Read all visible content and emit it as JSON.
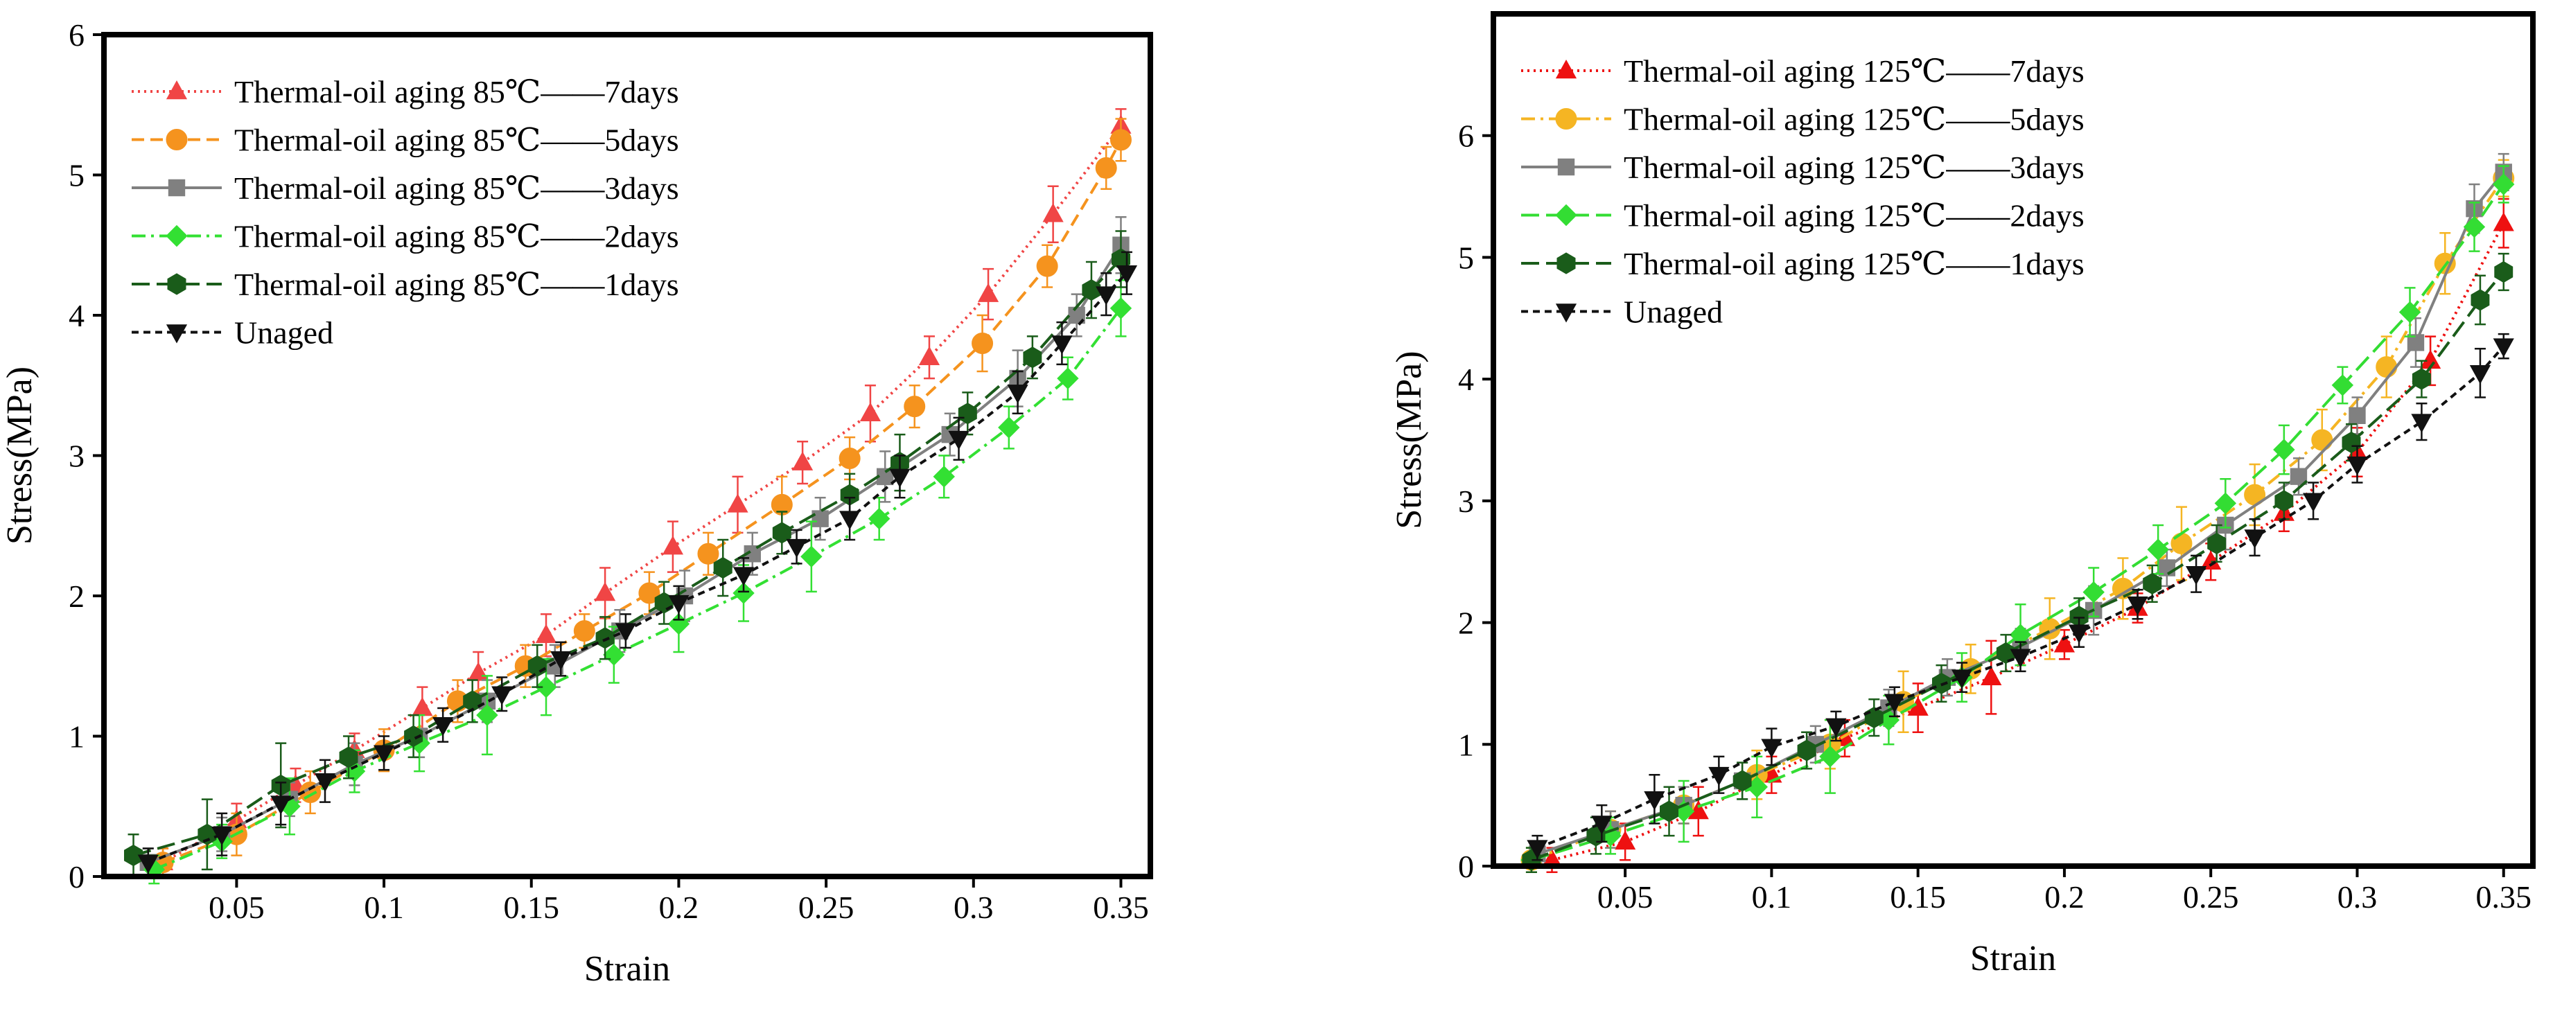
{
  "chart_data": [
    {
      "type": "line",
      "xlabel": "Strain",
      "ylabel": "Stress(MPa)",
      "xlim": [
        0.005,
        0.36
      ],
      "ylim": [
        0,
        6
      ],
      "xticks": [
        "0.05",
        "0.1",
        "0.15",
        "0.2",
        "0.25",
        "0.3",
        "0.35"
      ],
      "xtick_values": [
        0.05,
        0.1,
        0.15,
        0.2,
        0.25,
        0.3,
        0.35
      ],
      "yticks": [
        "0",
        "1",
        "2",
        "3",
        "4",
        "5",
        "6"
      ],
      "ytick_values": [
        0,
        1,
        2,
        3,
        4,
        5,
        6
      ],
      "legend_position": "top-left",
      "error_bars": true,
      "series": [
        {
          "name": "Thermal-oil aging 85℃——7days",
          "color": "#f04545",
          "dash": "dotted",
          "marker": "triangle-up",
          "x": [
            0.025,
            0.05,
            0.07,
            0.09,
            0.113,
            0.132,
            0.155,
            0.175,
            0.198,
            0.22,
            0.242,
            0.265,
            0.285,
            0.305,
            0.327,
            0.35
          ],
          "y": [
            0.1,
            0.4,
            0.65,
            0.9,
            1.2,
            1.45,
            1.72,
            2.02,
            2.35,
            2.65,
            2.95,
            3.3,
            3.7,
            4.15,
            4.72,
            5.35
          ],
          "err": [
            0.1,
            0.12,
            0.12,
            0.12,
            0.15,
            0.15,
            0.15,
            0.18,
            0.18,
            0.2,
            0.15,
            0.2,
            0.15,
            0.18,
            0.2,
            0.12
          ]
        },
        {
          "name": "Thermal-oil aging 85℃——5days",
          "color": "#f5931e",
          "dash": "dashed",
          "marker": "circle",
          "x": [
            0.025,
            0.05,
            0.075,
            0.1,
            0.125,
            0.148,
            0.168,
            0.19,
            0.21,
            0.235,
            0.258,
            0.28,
            0.303,
            0.325,
            0.345,
            0.35
          ],
          "y": [
            0.1,
            0.3,
            0.6,
            0.9,
            1.25,
            1.5,
            1.75,
            2.02,
            2.3,
            2.65,
            2.98,
            3.35,
            3.8,
            4.35,
            5.05,
            5.25
          ],
          "err": [
            0.1,
            0.15,
            0.15,
            0.15,
            0.15,
            0.15,
            0.12,
            0.15,
            0.15,
            0.2,
            0.15,
            0.15,
            0.2,
            0.15,
            0.15,
            0.15
          ]
        },
        {
          "name": "Thermal-oil aging 85℃——3days",
          "color": "#808080",
          "dash": "solid",
          "marker": "square",
          "x": [
            0.02,
            0.045,
            0.068,
            0.09,
            0.112,
            0.135,
            0.158,
            0.18,
            0.202,
            0.225,
            0.248,
            0.27,
            0.292,
            0.315,
            0.335,
            0.35
          ],
          "y": [
            0.1,
            0.3,
            0.55,
            0.8,
            1.0,
            1.25,
            1.5,
            1.75,
            2.0,
            2.3,
            2.55,
            2.85,
            3.15,
            3.55,
            4.0,
            4.5
          ],
          "err": [
            0.1,
            0.12,
            0.12,
            0.15,
            0.15,
            0.15,
            0.15,
            0.15,
            0.18,
            0.15,
            0.15,
            0.18,
            0.15,
            0.2,
            0.15,
            0.2
          ]
        },
        {
          "name": "Thermal-oil aging 85℃——2days",
          "color": "#33e033",
          "dash": "dashdot",
          "marker": "diamond",
          "x": [
            0.022,
            0.045,
            0.068,
            0.09,
            0.112,
            0.135,
            0.155,
            0.178,
            0.2,
            0.222,
            0.245,
            0.268,
            0.29,
            0.312,
            0.332,
            0.35
          ],
          "y": [
            0.05,
            0.25,
            0.5,
            0.75,
            0.95,
            1.15,
            1.35,
            1.58,
            1.8,
            2.02,
            2.28,
            2.55,
            2.85,
            3.2,
            3.55,
            4.05
          ],
          "err": [
            0.1,
            0.12,
            0.2,
            0.15,
            0.2,
            0.28,
            0.2,
            0.2,
            0.2,
            0.2,
            0.25,
            0.15,
            0.15,
            0.15,
            0.15,
            0.2
          ]
        },
        {
          "name": "Thermal-oil aging 85℃——1days",
          "color": "#1a5c1a",
          "dash": "longdash",
          "marker": "hexagon",
          "x": [
            0.015,
            0.04,
            0.065,
            0.088,
            0.11,
            0.13,
            0.152,
            0.175,
            0.195,
            0.215,
            0.235,
            0.258,
            0.275,
            0.298,
            0.32,
            0.34,
            0.35
          ],
          "y": [
            0.15,
            0.3,
            0.65,
            0.85,
            1.0,
            1.25,
            1.5,
            1.7,
            1.95,
            2.2,
            2.45,
            2.72,
            2.95,
            3.3,
            3.7,
            4.18,
            4.4
          ],
          "err": [
            0.15,
            0.25,
            0.3,
            0.15,
            0.15,
            0.15,
            0.15,
            0.15,
            0.15,
            0.2,
            0.15,
            0.15,
            0.2,
            0.15,
            0.15,
            0.2,
            0.2
          ]
        },
        {
          "name": "Unaged",
          "color": "#111111",
          "dash": "shortdash",
          "marker": "triangle-down",
          "x": [
            0.02,
            0.045,
            0.065,
            0.08,
            0.1,
            0.12,
            0.14,
            0.16,
            0.182,
            0.2,
            0.222,
            0.24,
            0.258,
            0.275,
            0.295,
            0.315,
            0.33,
            0.345,
            0.352
          ],
          "y": [
            0.1,
            0.3,
            0.52,
            0.68,
            0.88,
            1.08,
            1.3,
            1.55,
            1.75,
            1.95,
            2.15,
            2.35,
            2.55,
            2.85,
            3.12,
            3.45,
            3.8,
            4.15,
            4.3
          ],
          "err": [
            0.1,
            0.15,
            0.15,
            0.15,
            0.12,
            0.12,
            0.12,
            0.12,
            0.12,
            0.12,
            0.12,
            0.12,
            0.15,
            0.15,
            0.15,
            0.15,
            0.15,
            0.15,
            0.15
          ]
        }
      ]
    },
    {
      "type": "line",
      "xlabel": "Strain",
      "ylabel": "Stress(MPa)",
      "xlim": [
        0.005,
        0.36
      ],
      "ylim": [
        0,
        7
      ],
      "xticks": [
        "0.05",
        "0.1",
        "0.15",
        "0.2",
        "0.25",
        "0.3",
        "0.35"
      ],
      "xtick_values": [
        0.05,
        0.1,
        0.15,
        0.2,
        0.25,
        0.3,
        0.35
      ],
      "yticks": [
        "0",
        "1",
        "2",
        "3",
        "4",
        "5",
        "6"
      ],
      "ytick_values": [
        0,
        1,
        2,
        3,
        4,
        5,
        6
      ],
      "legend_position": "top-left",
      "error_bars": true,
      "series": [
        {
          "name": "Thermal-oil aging 125℃——7days",
          "color": "#ee1111",
          "dash": "dotted",
          "marker": "triangle-up",
          "x": [
            0.025,
            0.05,
            0.075,
            0.1,
            0.125,
            0.15,
            0.175,
            0.2,
            0.225,
            0.25,
            0.275,
            0.3,
            0.325,
            0.35
          ],
          "y": [
            0.05,
            0.2,
            0.45,
            0.75,
            1.05,
            1.3,
            1.55,
            1.82,
            2.12,
            2.5,
            2.9,
            3.4,
            4.15,
            5.28
          ],
          "err": [
            0.1,
            0.15,
            0.2,
            0.15,
            0.15,
            0.2,
            0.3,
            0.12,
            0.12,
            0.15,
            0.15,
            0.2,
            0.2,
            0.2
          ]
        },
        {
          "name": "Thermal-oil aging 125℃——5days",
          "color": "#f5b523",
          "dash": "dashdot",
          "marker": "circle",
          "x": [
            0.018,
            0.045,
            0.07,
            0.095,
            0.12,
            0.145,
            0.168,
            0.195,
            0.22,
            0.24,
            0.265,
            0.288,
            0.31,
            0.33,
            0.35
          ],
          "y": [
            0.05,
            0.3,
            0.5,
            0.75,
            1.0,
            1.35,
            1.62,
            1.95,
            2.28,
            2.65,
            3.05,
            3.5,
            4.1,
            4.95,
            5.65
          ],
          "err": [
            0.1,
            0.15,
            0.15,
            0.2,
            0.2,
            0.25,
            0.2,
            0.25,
            0.25,
            0.3,
            0.25,
            0.25,
            0.25,
            0.25,
            0.15
          ]
        },
        {
          "name": "Thermal-oil aging 125℃——3days",
          "color": "#808080",
          "dash": "solid",
          "marker": "square",
          "x": [
            0.02,
            0.045,
            0.07,
            0.09,
            0.115,
            0.14,
            0.16,
            0.185,
            0.21,
            0.235,
            0.255,
            0.28,
            0.3,
            0.32,
            0.34,
            0.35
          ],
          "y": [
            0.1,
            0.3,
            0.5,
            0.7,
            1.0,
            1.3,
            1.55,
            1.8,
            2.1,
            2.45,
            2.8,
            3.2,
            3.7,
            4.3,
            5.4,
            5.7
          ],
          "err": [
            0.1,
            0.15,
            0.15,
            0.15,
            0.15,
            0.15,
            0.15,
            0.15,
            0.2,
            0.15,
            0.2,
            0.15,
            0.15,
            0.2,
            0.2,
            0.15
          ]
        },
        {
          "name": "Thermal-oil aging 125℃——2days",
          "color": "#33dd33",
          "dash": "longdash",
          "marker": "diamond",
          "x": [
            0.018,
            0.045,
            0.07,
            0.095,
            0.12,
            0.14,
            0.165,
            0.185,
            0.21,
            0.232,
            0.255,
            0.275,
            0.295,
            0.318,
            0.34,
            0.35
          ],
          "y": [
            0.05,
            0.25,
            0.45,
            0.65,
            0.9,
            1.2,
            1.55,
            1.9,
            2.25,
            2.6,
            2.98,
            3.42,
            3.95,
            4.55,
            5.25,
            5.6
          ],
          "err": [
            0.1,
            0.15,
            0.25,
            0.25,
            0.3,
            0.2,
            0.2,
            0.25,
            0.2,
            0.2,
            0.2,
            0.2,
            0.15,
            0.2,
            0.2,
            0.15
          ]
        },
        {
          "name": "Thermal-oil aging 125℃——1days",
          "color": "#1a5c1a",
          "dash": "longdash",
          "marker": "hexagon",
          "x": [
            0.018,
            0.04,
            0.065,
            0.09,
            0.112,
            0.135,
            0.158,
            0.18,
            0.205,
            0.23,
            0.252,
            0.275,
            0.298,
            0.322,
            0.342,
            0.35
          ],
          "y": [
            0.05,
            0.25,
            0.45,
            0.7,
            0.95,
            1.22,
            1.5,
            1.75,
            2.05,
            2.32,
            2.65,
            3.0,
            3.48,
            4.0,
            4.65,
            4.88
          ],
          "err": [
            0.1,
            0.15,
            0.2,
            0.15,
            0.15,
            0.15,
            0.15,
            0.15,
            0.15,
            0.15,
            0.15,
            0.15,
            0.15,
            0.15,
            0.2,
            0.15
          ]
        },
        {
          "name": "Unaged",
          "color": "#111111",
          "dash": "shortdash",
          "marker": "triangle-down",
          "x": [
            0.02,
            0.042,
            0.06,
            0.082,
            0.1,
            0.122,
            0.142,
            0.165,
            0.185,
            0.205,
            0.225,
            0.245,
            0.265,
            0.285,
            0.3,
            0.322,
            0.342,
            0.35
          ],
          "y": [
            0.15,
            0.35,
            0.55,
            0.75,
            0.98,
            1.15,
            1.35,
            1.55,
            1.72,
            1.92,
            2.15,
            2.4,
            2.7,
            3.0,
            3.3,
            3.65,
            4.05,
            4.27
          ],
          "err": [
            0.1,
            0.15,
            0.2,
            0.15,
            0.15,
            0.12,
            0.12,
            0.12,
            0.12,
            0.12,
            0.12,
            0.15,
            0.15,
            0.15,
            0.15,
            0.15,
            0.2,
            0.1
          ]
        }
      ]
    }
  ]
}
